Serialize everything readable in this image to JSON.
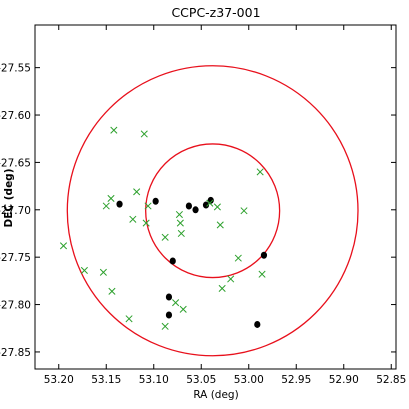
{
  "chart_data": {
    "type": "scatter",
    "title": "CCPC-z37-001",
    "xlabel": "RA (deg)",
    "ylabel": "DEC (deg)",
    "xlim": [
      53.225,
      52.845
    ],
    "ylim": [
      -27.868,
      -27.505
    ],
    "x_ticks": [
      53.2,
      53.15,
      53.1,
      53.05,
      53.0,
      52.95,
      52.9,
      52.85
    ],
    "x_tick_labels": [
      "53.20",
      "53.15",
      "53.10",
      "53.05",
      "53.00",
      "52.95",
      "52.90",
      "52.85"
    ],
    "y_ticks": [
      -27.55,
      -27.6,
      -27.65,
      -27.7,
      -27.75,
      -27.8,
      -27.85
    ],
    "y_tick_labels": [
      "-27.55",
      "-27.60",
      "-27.65",
      "-27.70",
      "-27.75",
      "-27.80",
      "-27.85"
    ],
    "grid": false,
    "circles": [
      {
        "center_ra": 53.038,
        "center_dec": -27.701,
        "radius_deg": 0.0705,
        "color": "#e8101c"
      },
      {
        "center_ra": 53.038,
        "center_dec": -27.701,
        "radius_deg": 0.153,
        "color": "#e8101c"
      }
    ],
    "series": [
      {
        "marker": "dot",
        "color": "#000000",
        "points": [
          [
            53.136,
            -27.694
          ],
          [
            53.098,
            -27.691
          ],
          [
            53.063,
            -27.696
          ],
          [
            53.056,
            -27.7
          ],
          [
            53.045,
            -27.695
          ],
          [
            53.04,
            -27.69
          ],
          [
            53.08,
            -27.754
          ],
          [
            52.984,
            -27.748
          ],
          [
            53.084,
            -27.792
          ],
          [
            53.084,
            -27.811
          ],
          [
            52.991,
            -27.821
          ]
        ]
      },
      {
        "marker": "x",
        "color": "#2ca02c",
        "points": [
          [
            53.142,
            -27.616
          ],
          [
            53.11,
            -27.62
          ],
          [
            53.118,
            -27.681
          ],
          [
            53.145,
            -27.688
          ],
          [
            53.15,
            -27.696
          ],
          [
            53.106,
            -27.696
          ],
          [
            53.041,
            -27.693
          ],
          [
            53.033,
            -27.697
          ],
          [
            53.005,
            -27.701
          ],
          [
            53.073,
            -27.705
          ],
          [
            53.122,
            -27.71
          ],
          [
            53.108,
            -27.714
          ],
          [
            53.072,
            -27.714
          ],
          [
            53.03,
            -27.716
          ],
          [
            53.071,
            -27.725
          ],
          [
            53.088,
            -27.729
          ],
          [
            53.011,
            -27.751
          ],
          [
            53.195,
            -27.738
          ],
          [
            53.173,
            -27.764
          ],
          [
            53.153,
            -27.766
          ],
          [
            53.144,
            -27.786
          ],
          [
            53.019,
            -27.773
          ],
          [
            53.028,
            -27.783
          ],
          [
            52.986,
            -27.768
          ],
          [
            52.988,
            -27.66
          ],
          [
            53.077,
            -27.798
          ],
          [
            53.069,
            -27.805
          ],
          [
            53.126,
            -27.815
          ],
          [
            53.088,
            -27.823
          ]
        ]
      }
    ]
  }
}
